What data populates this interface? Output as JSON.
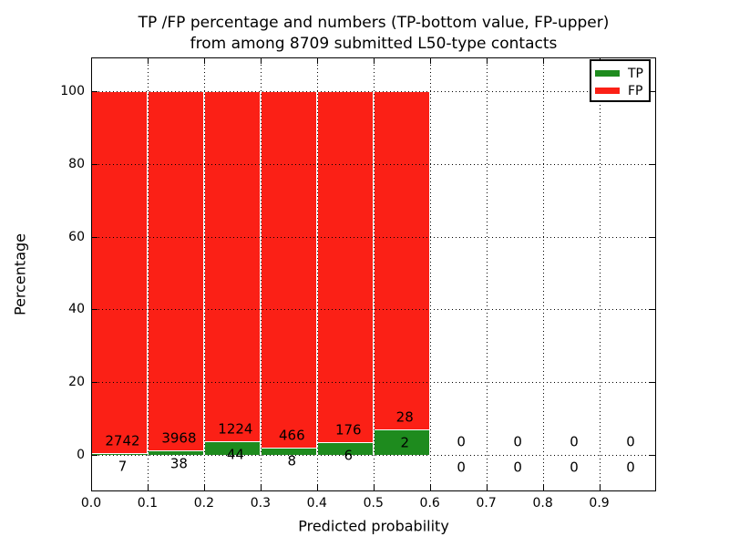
{
  "chart_data": {
    "type": "bar",
    "stacked": true,
    "normalized_to_percent": true,
    "title_lines": [
      "TP /FP percentage and numbers (TP-bottom value, FP-upper)",
      "from among 8709 submitted L50-type contacts"
    ],
    "xlabel": "Predicted probability",
    "ylabel": "Percentage",
    "xlim": [
      0.0,
      1.0
    ],
    "ylim": [
      -10,
      109
    ],
    "bin_width": 0.1,
    "bin_starts": [
      0.0,
      0.1,
      0.2,
      0.3,
      0.4,
      0.5,
      0.6,
      0.7,
      0.8,
      0.9
    ],
    "x_tick_labels": [
      "0.0",
      "0.1",
      "0.2",
      "0.3",
      "0.4",
      "0.5",
      "0.6",
      "0.7",
      "0.8",
      "0.9"
    ],
    "y_tick_values": [
      0,
      20,
      40,
      60,
      80,
      100
    ],
    "y_tick_labels": [
      "0",
      "20",
      "40",
      "60",
      "80",
      "100"
    ],
    "grid": {
      "style": "dotted",
      "color": "#000000",
      "drawn_above_bars": true
    },
    "legend": {
      "position": "upper right"
    },
    "series": [
      {
        "name": "TP",
        "color": "#1e8b1e",
        "values": [
          7,
          38,
          44,
          8,
          6,
          2,
          0,
          0,
          0,
          0
        ]
      },
      {
        "name": "FP",
        "color": "#fb2016",
        "values": [
          2742,
          3968,
          1224,
          466,
          176,
          28,
          0,
          0,
          0,
          0
        ]
      }
    ],
    "bar_edge_color": "#ffffff",
    "background_color": "#ffffff"
  }
}
